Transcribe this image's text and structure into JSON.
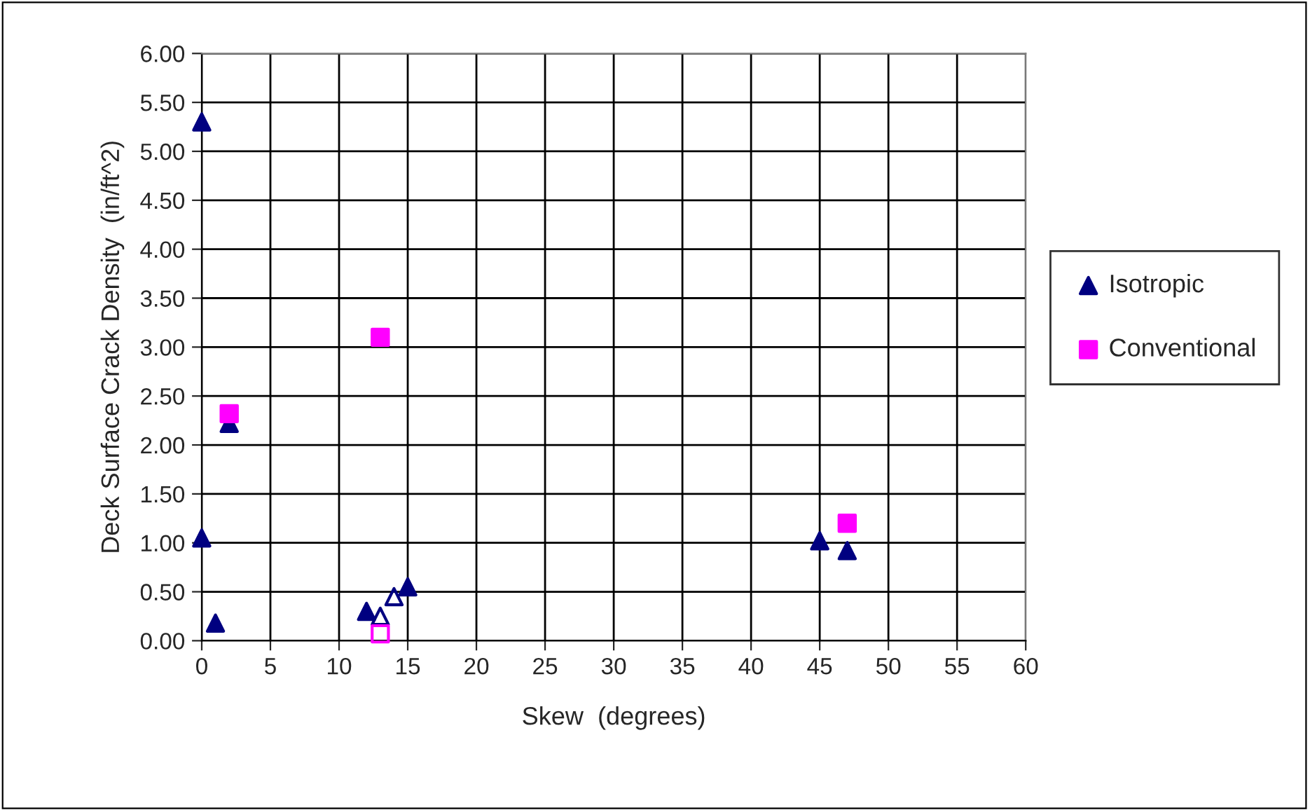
{
  "chart_data": {
    "type": "scatter",
    "xlabel": "Skew  (degrees)",
    "ylabel": "Deck Surface Crack Density  (in/ft^2)",
    "xlim": [
      0,
      60
    ],
    "xticks": [
      0,
      5,
      10,
      15,
      20,
      25,
      30,
      35,
      40,
      45,
      50,
      55,
      60
    ],
    "ylim": [
      0,
      6
    ],
    "yticks": [
      {
        "value": 0,
        "label": "0.00"
      },
      {
        "value": 0.5,
        "label": "0.50"
      },
      {
        "value": 1,
        "label": "1.00"
      },
      {
        "value": 1.5,
        "label": "1.50"
      },
      {
        "value": 2,
        "label": "2.00"
      },
      {
        "value": 2.5,
        "label": "2.50"
      },
      {
        "value": 3,
        "label": "3.00"
      },
      {
        "value": 3.5,
        "label": "3.50"
      },
      {
        "value": 4,
        "label": "4.00"
      },
      {
        "value": 4.5,
        "label": "4.50"
      },
      {
        "value": 5,
        "label": "5.00"
      },
      {
        "value": 5.5,
        "label": "5.50"
      },
      {
        "value": 6,
        "label": "6.00"
      }
    ],
    "grid": true,
    "legend": "right",
    "series": [
      {
        "name": "Isotropic",
        "color": "#000080",
        "marker": "triangle",
        "x": [
          0,
          0,
          1,
          2,
          12,
          15,
          45,
          47
        ],
        "values": [
          5.3,
          1.05,
          0.18,
          2.22,
          0.3,
          0.55,
          1.02,
          0.92
        ]
      },
      {
        "name": "Conventional",
        "color": "#ff00ff",
        "marker": "square",
        "x": [
          2,
          13,
          47
        ],
        "values": [
          2.32,
          3.1,
          1.2
        ]
      },
      {
        "color": "#000080",
        "marker": "triangle",
        "x": [
          13,
          14
        ],
        "values": [
          0.25,
          0.45
        ]
      },
      {
        "color": "#ff00ff",
        "marker": "square",
        "x": [
          13
        ],
        "values": [
          0.07
        ]
      }
    ]
  }
}
